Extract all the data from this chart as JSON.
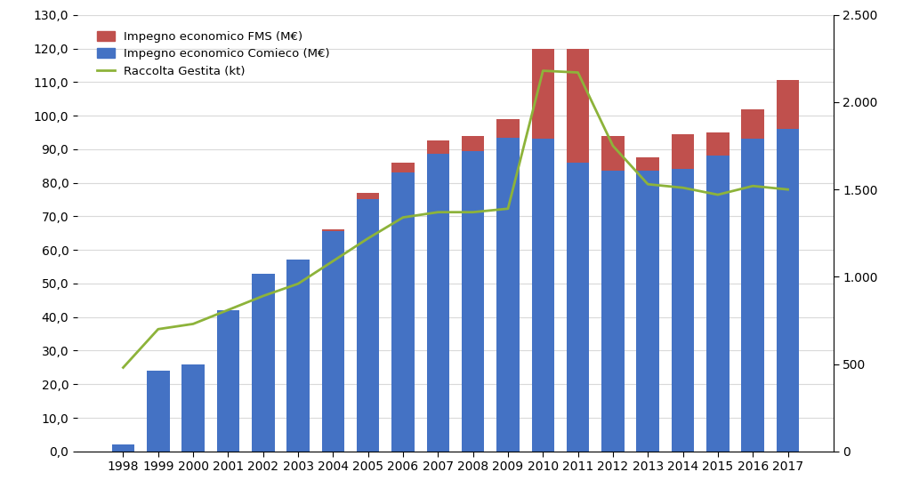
{
  "years": [
    1998,
    1999,
    2000,
    2001,
    2002,
    2003,
    2004,
    2005,
    2006,
    2007,
    2008,
    2009,
    2010,
    2011,
    2012,
    2013,
    2014,
    2015,
    2016,
    2017
  ],
  "comieco": [
    2.0,
    24.0,
    26.0,
    42.0,
    53.0,
    57.0,
    65.5,
    75.0,
    83.0,
    88.5,
    89.5,
    93.5,
    93.0,
    86.0,
    83.5,
    83.5,
    84.0,
    88.0,
    93.0,
    96.0
  ],
  "fms": [
    0.0,
    0.0,
    0.0,
    0.0,
    0.0,
    0.0,
    0.5,
    2.0,
    3.0,
    4.0,
    4.5,
    5.5,
    27.0,
    34.0,
    10.5,
    4.0,
    10.5,
    7.0,
    9.0,
    14.5
  ],
  "raccolta": [
    480,
    700,
    730,
    810,
    890,
    960,
    1090,
    1220,
    1340,
    1370,
    1370,
    1390,
    2180,
    2170,
    1750,
    1530,
    1510,
    1470,
    1520,
    1500
  ],
  "bar_color_comieco": "#4472C4",
  "bar_color_fms": "#C0504D",
  "line_color": "#8DB33A",
  "ylim_left": [
    0,
    130
  ],
  "ylim_right": [
    0,
    2500
  ],
  "yticks_left": [
    0,
    10,
    20,
    30,
    40,
    50,
    60,
    70,
    80,
    90,
    100,
    110,
    120,
    130
  ],
  "yticks_left_labels": [
    "0,0",
    "10,0",
    "20,0",
    "30,0",
    "40,0",
    "50,0",
    "60,0",
    "70,0",
    "80,0",
    "90,0",
    "100,0",
    "110,0",
    "120,0",
    "130,0"
  ],
  "yticks_right": [
    0,
    500,
    1000,
    1500,
    2000,
    2500
  ],
  "yticks_right_labels": [
    "0",
    "500",
    "1.000",
    "1.500",
    "2.000",
    "2.500"
  ],
  "legend_fms": "Impegno economico FMS (M€)",
  "legend_comieco": "Impegno economico Comieco (M€)",
  "legend_raccolta": "Raccolta Gestita (kt)",
  "background_color": "#FFFFFF",
  "grid_color": "#D9D9D9"
}
